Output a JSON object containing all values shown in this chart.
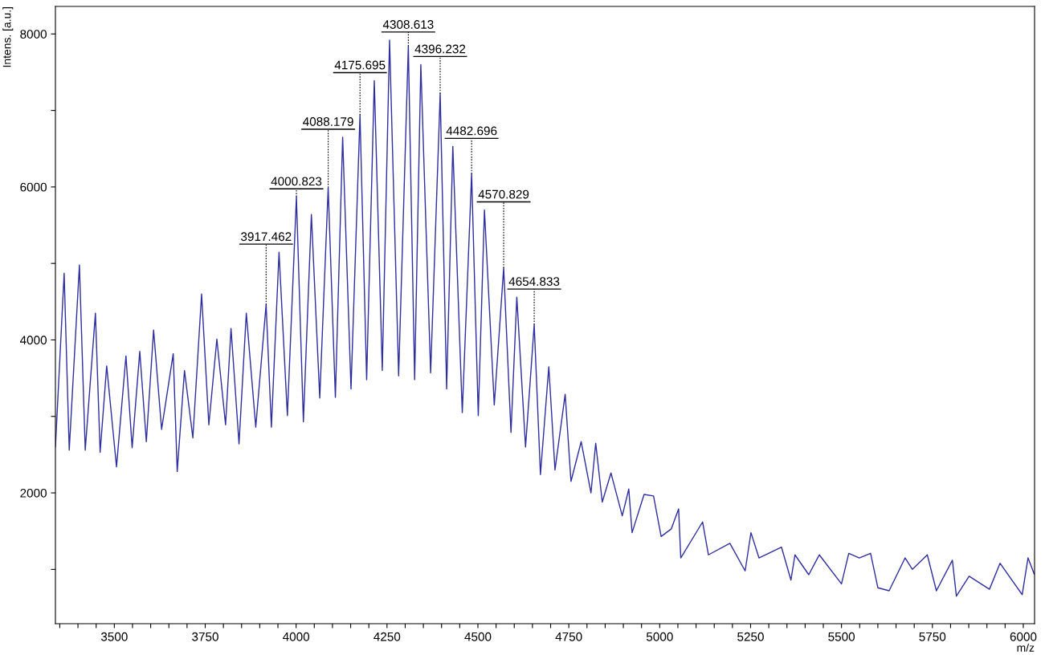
{
  "chart_data": {
    "type": "line",
    "xlabel": "m/z",
    "ylabel": "Intens. [a.u.]",
    "xlim": [
      3338,
      6031
    ],
    "ylim": [
      290,
      8360
    ],
    "xticks": [
      {
        "value": 3350,
        "label": null
      },
      {
        "value": 3400,
        "label": null
      },
      {
        "value": 3450,
        "label": null
      },
      3500,
      {
        "value": 3550,
        "label": null
      },
      {
        "value": 3600,
        "label": null
      },
      {
        "value": 3650,
        "label": null
      },
      {
        "value": 3700,
        "label": null
      },
      3750,
      {
        "value": 3800,
        "label": null
      },
      {
        "value": 3850,
        "label": null
      },
      {
        "value": 3900,
        "label": null
      },
      {
        "value": 3950,
        "label": null
      },
      4000,
      {
        "value": 4050,
        "label": null
      },
      {
        "value": 4100,
        "label": null
      },
      {
        "value": 4150,
        "label": null
      },
      {
        "value": 4200,
        "label": null
      },
      4250,
      {
        "value": 4300,
        "label": null
      },
      {
        "value": 4350,
        "label": null
      },
      {
        "value": 4400,
        "label": null
      },
      {
        "value": 4450,
        "label": null
      },
      4500,
      {
        "value": 4550,
        "label": null
      },
      {
        "value": 4600,
        "label": null
      },
      {
        "value": 4650,
        "label": null
      },
      {
        "value": 4700,
        "label": null
      },
      4750,
      {
        "value": 4800,
        "label": null
      },
      {
        "value": 4850,
        "label": null
      },
      {
        "value": 4900,
        "label": null
      },
      {
        "value": 4950,
        "label": null
      },
      5000,
      {
        "value": 5050,
        "label": null
      },
      {
        "value": 5100,
        "label": null
      },
      {
        "value": 5150,
        "label": null
      },
      {
        "value": 5200,
        "label": null
      },
      5250,
      {
        "value": 5300,
        "label": null
      },
      {
        "value": 5350,
        "label": null
      },
      {
        "value": 5400,
        "label": null
      },
      {
        "value": 5450,
        "label": null
      },
      5500,
      {
        "value": 5550,
        "label": null
      },
      {
        "value": 5600,
        "label": null
      },
      {
        "value": 5650,
        "label": null
      },
      {
        "value": 5700,
        "label": null
      },
      5750,
      {
        "value": 5800,
        "label": null
      },
      {
        "value": 5850,
        "label": null
      },
      {
        "value": 5900,
        "label": null
      },
      {
        "value": 5950,
        "label": null
      },
      6000
    ],
    "yticks": [
      {
        "value": 1000,
        "label": null
      },
      2000,
      {
        "value": 3000,
        "label": null
      },
      4000,
      {
        "value": 5000,
        "label": null
      },
      6000,
      {
        "value": 7000,
        "label": null
      },
      8000
    ],
    "grid": false,
    "marker": "none",
    "line_style": "solid",
    "series": [
      {
        "color": "#2e2e9e",
        "x": [
          3338,
          3362,
          3376,
          3404,
          3420,
          3448,
          3461,
          3479,
          3506,
          3532,
          3549,
          3570,
          3588,
          3608,
          3630,
          3662,
          3673,
          3693,
          3716,
          3740,
          3760,
          3782,
          3806,
          3821,
          3843,
          3863,
          3889,
          3917.462,
          3932,
          3953,
          3976,
          4000.823,
          4020,
          4042,
          4065,
          4088.179,
          4108,
          4128,
          4151,
          4175.695,
          4194,
          4215,
          4237,
          4257,
          4282,
          4308.613,
          4326,
          4343,
          4370,
          4396.232,
          4414,
          4431,
          4457,
          4482.696,
          4501,
          4518,
          4545,
          4570.829,
          4591,
          4607,
          4631,
          4654.833,
          4672,
          4695,
          4712,
          4740,
          4756,
          4784,
          4811,
          4824,
          4842,
          4866,
          4897,
          4915,
          4924,
          4957,
          4983,
          5004,
          5032,
          5052,
          5058,
          5118,
          5134,
          5193,
          5235,
          5251,
          5273,
          5335,
          5361,
          5372,
          5410,
          5439,
          5500,
          5520,
          5549,
          5580,
          5600,
          5631,
          5675,
          5695,
          5736,
          5761,
          5805,
          5816,
          5851,
          5907,
          5936,
          5997,
          6013,
          6030
        ],
        "values": [
          2600,
          4870,
          2560,
          4980,
          2560,
          4350,
          2530,
          3660,
          2340,
          3790,
          2590,
          3850,
          2670,
          4130,
          2830,
          3820,
          2280,
          3600,
          2720,
          4600,
          2890,
          4010,
          2890,
          4150,
          2640,
          4350,
          2860,
          4460,
          2860,
          5147,
          3010,
          5870,
          2930,
          5640,
          3240,
          5990,
          3250,
          6650,
          3360,
          6940,
          3480,
          7390,
          3600,
          7920,
          3530,
          7840,
          3480,
          7600,
          3570,
          7220,
          3360,
          6530,
          3050,
          6170,
          3010,
          5700,
          3150,
          4940,
          2790,
          4560,
          2600,
          4200,
          2240,
          3650,
          2300,
          3290,
          2150,
          2670,
          2000,
          2650,
          1880,
          2260,
          1700,
          2050,
          1480,
          1980,
          1960,
          1430,
          1530,
          1790,
          1150,
          1620,
          1190,
          1340,
          980,
          1480,
          1150,
          1290,
          860,
          1190,
          930,
          1190,
          810,
          1210,
          1150,
          1210,
          760,
          720,
          1150,
          1000,
          1190,
          720,
          1120,
          650,
          910,
          740,
          1080,
          670,
          1150,
          940
        ]
      }
    ],
    "annotations": [
      {
        "text": "3917.462",
        "x": 3917.462,
        "y": 4460
      },
      {
        "text": "4000.823",
        "x": 4000.823,
        "y": 5870
      },
      {
        "text": "4088.179",
        "x": 4088.179,
        "y": 5990
      },
      {
        "text": "4175.695",
        "x": 4175.695,
        "y": 6940
      },
      {
        "text": "4308.613",
        "x": 4308.613,
        "y": 7840
      },
      {
        "text": "4396.232",
        "x": 4396.232,
        "y": 7220
      },
      {
        "text": "4482.696",
        "x": 4482.696,
        "y": 6170
      },
      {
        "text": "4570.829",
        "x": 4570.829,
        "y": 4940
      },
      {
        "text": "4654.833",
        "x": 4654.833,
        "y": 4200
      }
    ]
  }
}
